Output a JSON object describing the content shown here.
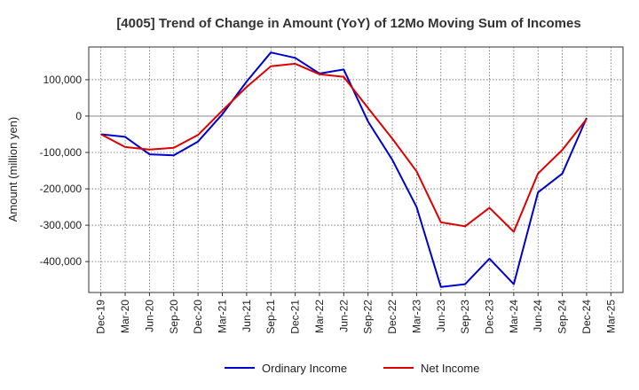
{
  "chart_data": {
    "type": "line",
    "title": "[4005]  Trend of Change in Amount (YoY) of 12Mo Moving Sum of Incomes",
    "xlabel": "",
    "ylabel": "Amount (million yen)",
    "ylim": [
      -485000,
      190000
    ],
    "yticks": [
      100000,
      0,
      -100000,
      -200000,
      -300000,
      -400000
    ],
    "ytick_labels": [
      "100,000",
      "0",
      "-100,000",
      "-200,000",
      "-300,000",
      "-400,000"
    ],
    "x": [
      "Dec-19",
      "Mar-20",
      "Jun-20",
      "Sep-20",
      "Dec-20",
      "Mar-21",
      "Jun-21",
      "Sep-21",
      "Dec-21",
      "Mar-22",
      "Jun-22",
      "Sep-22",
      "Dec-22",
      "Mar-23",
      "Jun-23",
      "Sep-23",
      "Dec-23",
      "Mar-24",
      "Jun-24",
      "Sep-24",
      "Dec-24",
      "Mar-25"
    ],
    "grid": true,
    "legend_position": "bottom",
    "series": [
      {
        "name": "Ordinary Income",
        "color": "#0000cc",
        "values": [
          -50000,
          -57000,
          -105000,
          -108000,
          -70000,
          5000,
          95000,
          175000,
          160000,
          117000,
          128000,
          -15000,
          -120000,
          -250000,
          -470000,
          -462000,
          -392000,
          -462000,
          -210000,
          -158000,
          -5000,
          null
        ]
      },
      {
        "name": "Net Income",
        "color": "#dd0000",
        "values": [
          -50000,
          -85000,
          -92000,
          -87000,
          -52000,
          15000,
          80000,
          137000,
          144000,
          115000,
          108000,
          22000,
          -62000,
          -152000,
          -292000,
          -303000,
          -252000,
          -318000,
          -158000,
          -93000,
          -8000,
          null
        ]
      }
    ]
  }
}
